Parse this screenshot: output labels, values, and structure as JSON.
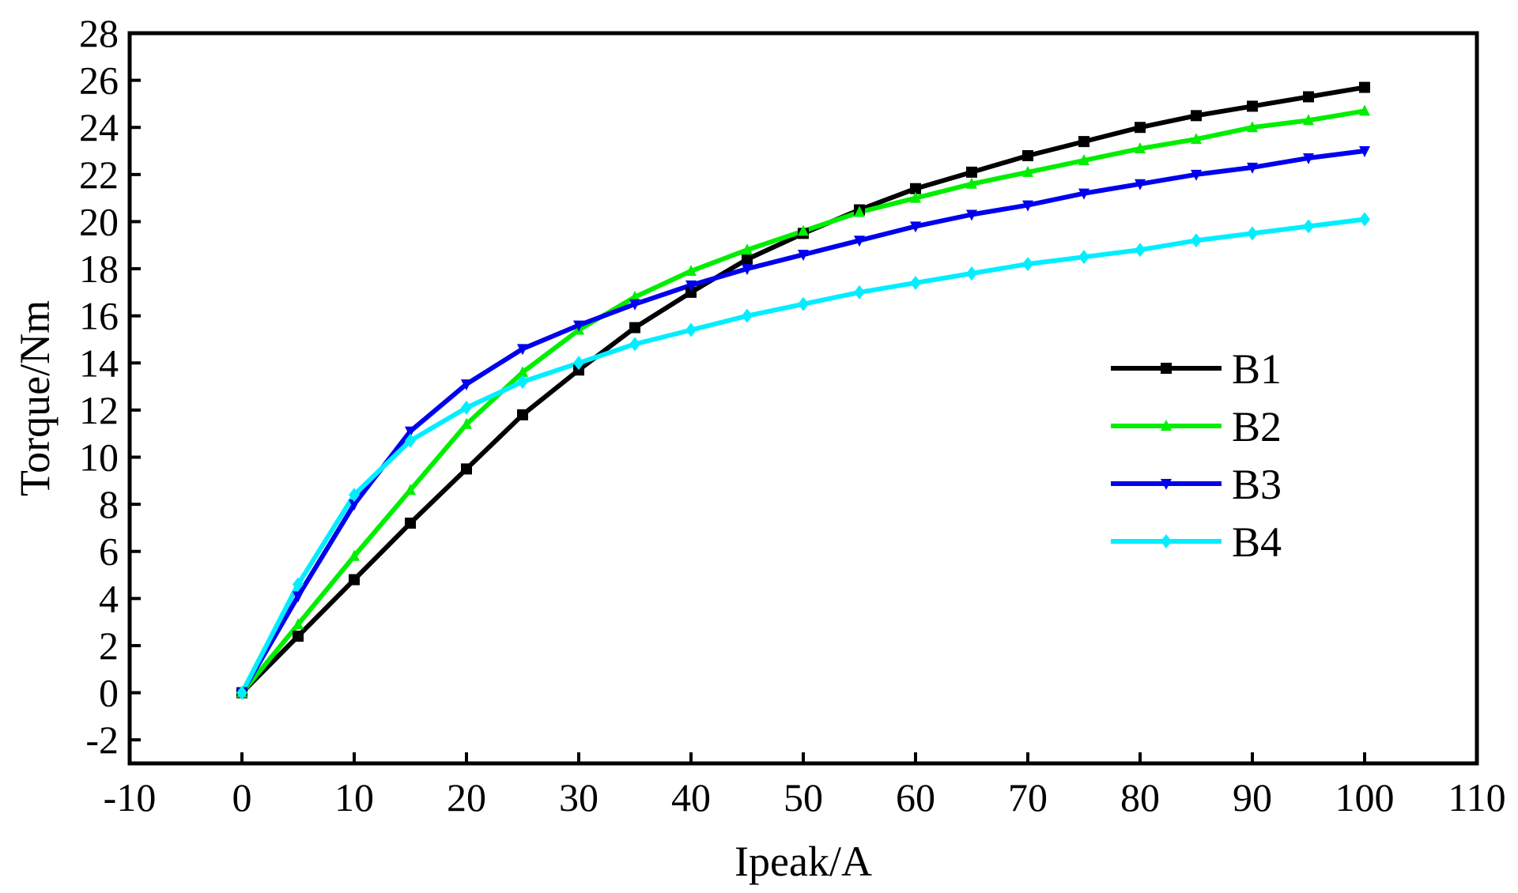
{
  "chart_data": {
    "type": "line",
    "title": "",
    "xlabel": "Ipeak/A",
    "ylabel": "Torque/Nm",
    "xlim": [
      -10,
      110
    ],
    "ylim": [
      -3,
      28
    ],
    "x_ticks": [
      "-10",
      "0",
      "10",
      "20",
      "30",
      "40",
      "50",
      "60",
      "70",
      "80",
      "90",
      "100",
      "110"
    ],
    "y_ticks": [
      "-2",
      "0",
      "2",
      "4",
      "6",
      "8",
      "10",
      "12",
      "14",
      "16",
      "18",
      "20",
      "22",
      "24",
      "26",
      "28"
    ],
    "grid": false,
    "legend_position": "right",
    "x": [
      0,
      5,
      10,
      15,
      20,
      25,
      30,
      35,
      40,
      45,
      50,
      55,
      60,
      65,
      70,
      75,
      80,
      85,
      90,
      95,
      100
    ],
    "series": [
      {
        "name": "B1",
        "color": "#000000",
        "marker": "square",
        "values": [
          0,
          2.4,
          4.8,
          7.2,
          9.5,
          11.8,
          13.7,
          15.5,
          17.0,
          18.4,
          19.5,
          20.5,
          21.4,
          22.1,
          22.8,
          23.4,
          24.0,
          24.5,
          24.9,
          25.3,
          25.7
        ]
      },
      {
        "name": "B2",
        "color": "#00ee00",
        "marker": "triangle-up",
        "values": [
          0,
          2.9,
          5.8,
          8.6,
          11.4,
          13.6,
          15.4,
          16.8,
          17.9,
          18.8,
          19.6,
          20.4,
          21.0,
          21.6,
          22.1,
          22.6,
          23.1,
          23.5,
          24.0,
          24.3,
          24.7
        ]
      },
      {
        "name": "B3",
        "color": "#0000ee",
        "marker": "triangle-down",
        "values": [
          0,
          4.1,
          8.0,
          11.1,
          13.1,
          14.6,
          15.6,
          16.5,
          17.3,
          18.0,
          18.6,
          19.2,
          19.8,
          20.3,
          20.7,
          21.2,
          21.6,
          22.0,
          22.3,
          22.7,
          23.0
        ]
      },
      {
        "name": "B4",
        "color": "#00eeff",
        "marker": "diamond",
        "values": [
          0,
          4.6,
          8.4,
          10.7,
          12.1,
          13.2,
          14.0,
          14.8,
          15.4,
          16.0,
          16.5,
          17.0,
          17.4,
          17.8,
          18.2,
          18.5,
          18.8,
          19.2,
          19.5,
          19.8,
          20.1
        ]
      }
    ]
  }
}
